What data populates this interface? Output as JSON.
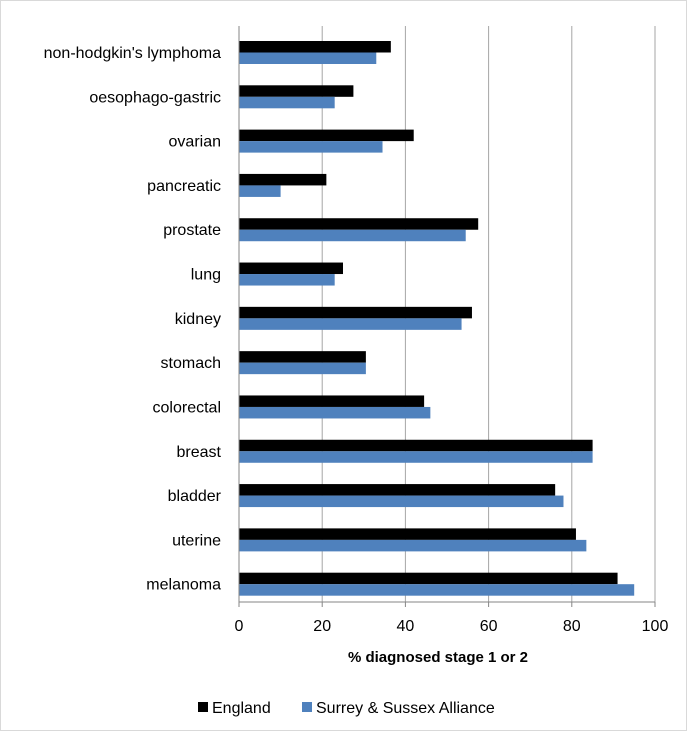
{
  "chart_data": {
    "type": "bar",
    "orientation": "horizontal",
    "categories": [
      "non-hodgkin's lymphoma",
      "oesophago-gastric",
      "ovarian",
      "pancreatic",
      "prostate",
      "lung",
      "kidney",
      "stomach",
      "colorectal",
      "breast",
      "bladder",
      "uterine",
      "melanoma"
    ],
    "series": [
      {
        "name": "England",
        "color": "#000000",
        "values": [
          36.5,
          27.5,
          42,
          21,
          57.5,
          25,
          56,
          30.5,
          44.5,
          85,
          76,
          81,
          91
        ]
      },
      {
        "name": "Surrey & Sussex Alliance",
        "color": "#4f81bd",
        "values": [
          33,
          23,
          34.5,
          10,
          54.5,
          23,
          53.5,
          30.5,
          46,
          85,
          78,
          83.5,
          95
        ]
      }
    ],
    "xlabel": "% diagnosed stage 1 or 2",
    "xlim": [
      0,
      100
    ],
    "xticks": [
      0,
      20,
      40,
      60,
      80,
      100
    ],
    "grid": "vertical",
    "legend_position": "bottom"
  }
}
